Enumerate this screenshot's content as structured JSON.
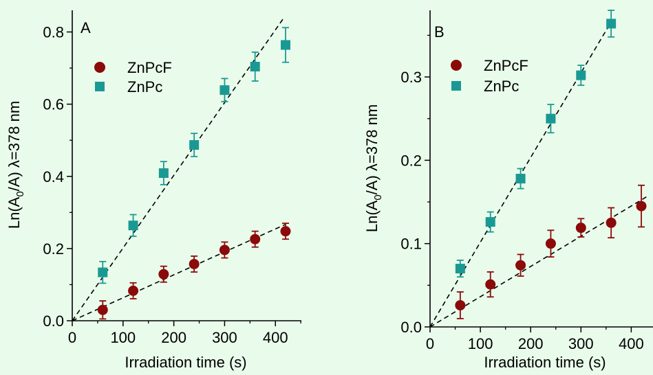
{
  "chart_data": [
    {
      "type": "scatter",
      "panel_label": "A",
      "xlabel": "Irradiation time (s)",
      "ylabel": {
        "prefix": "Ln(A",
        "subscript": "0",
        "suffix": "/A) λ=378 nm"
      },
      "xlim": [
        0,
        450
      ],
      "ylim": [
        0,
        0.86
      ],
      "xticks": [
        0,
        100,
        200,
        300,
        400
      ],
      "yticks": [
        "0.0",
        "0.2",
        "0.4",
        "0.6",
        "0.8"
      ],
      "legend_position": "top-left",
      "series": [
        {
          "name": "ZnPcF",
          "marker": "circle",
          "color": "#8b0a0a",
          "x": [
            60,
            120,
            180,
            240,
            300,
            360,
            420
          ],
          "y": [
            0.03,
            0.083,
            0.129,
            0.157,
            0.196,
            0.226,
            0.248
          ],
          "err": [
            0.025,
            0.022,
            0.022,
            0.022,
            0.022,
            0.022,
            0.022
          ],
          "fit": {
            "x": [
              0,
              420
            ],
            "y": [
              0,
              0.267
            ]
          }
        },
        {
          "name": "ZnPc",
          "marker": "square",
          "color": "#1a9994",
          "x": [
            60,
            120,
            180,
            240,
            300,
            360,
            420
          ],
          "y": [
            0.134,
            0.264,
            0.409,
            0.487,
            0.639,
            0.704,
            0.764
          ],
          "err": [
            0.03,
            0.03,
            0.032,
            0.032,
            0.032,
            0.04,
            0.048
          ],
          "fit": {
            "x": [
              0,
              415
            ],
            "y": [
              0,
              0.836
            ]
          }
        }
      ]
    },
    {
      "type": "scatter",
      "panel_label": "B",
      "xlabel": "Irradiation time (s)",
      "ylabel": {
        "prefix": "Ln(A",
        "subscript": "0",
        "suffix": "/A) λ=378 nm"
      },
      "xlim": [
        0,
        450
      ],
      "ylim": [
        0,
        0.38
      ],
      "xticks": [
        0,
        100,
        200,
        300,
        400
      ],
      "yticks": [
        "0.0",
        "0.1",
        "0.2",
        "0.3"
      ],
      "legend_position": "top-left",
      "series": [
        {
          "name": "ZnPcF",
          "marker": "circle",
          "color": "#8b0a0a",
          "x": [
            60,
            120,
            180,
            240,
            300,
            360,
            420
          ],
          "y": [
            0.026,
            0.051,
            0.074,
            0.1,
            0.119,
            0.125,
            0.145
          ],
          "err": [
            0.016,
            0.015,
            0.013,
            0.016,
            0.011,
            0.018,
            0.025
          ],
          "fit": {
            "x": [
              0,
              430
            ],
            "y": [
              0,
              0.156
            ]
          }
        },
        {
          "name": "ZnPc",
          "marker": "square",
          "color": "#1a9994",
          "x": [
            60,
            120,
            180,
            240,
            300,
            360
          ],
          "y": [
            0.07,
            0.126,
            0.178,
            0.25,
            0.302,
            0.364
          ],
          "err": [
            0.01,
            0.012,
            0.012,
            0.017,
            0.012,
            0.016
          ],
          "fit": {
            "x": [
              0,
              362
            ],
            "y": [
              0,
              0.368
            ]
          }
        }
      ]
    }
  ]
}
